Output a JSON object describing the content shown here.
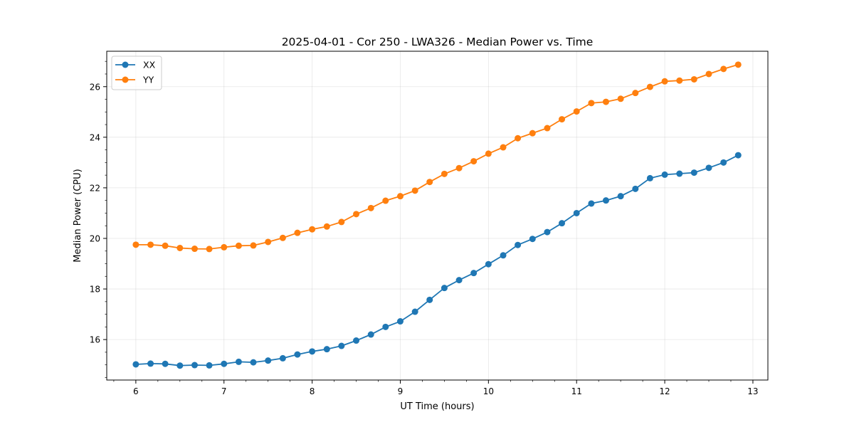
{
  "chart_data": {
    "type": "line",
    "title": "2025-04-01 - Cor 250 - LWA326 - Median Power vs. Time",
    "xlabel": "UT Time (hours)",
    "ylabel": "Median Power (CPU)",
    "xlim": [
      5.67,
      13.17
    ],
    "ylim": [
      14.4,
      27.4
    ],
    "xticks": [
      6,
      7,
      8,
      9,
      10,
      11,
      12,
      13
    ],
    "yticks": [
      16,
      18,
      20,
      22,
      24,
      26
    ],
    "grid": true,
    "legend_position": "top-left",
    "x": [
      6.0,
      6.167,
      6.333,
      6.5,
      6.667,
      6.833,
      7.0,
      7.167,
      7.333,
      7.5,
      7.667,
      7.833,
      8.0,
      8.167,
      8.333,
      8.5,
      8.667,
      8.833,
      9.0,
      9.167,
      9.333,
      9.5,
      9.667,
      9.833,
      10.0,
      10.167,
      10.333,
      10.5,
      10.667,
      10.833,
      11.0,
      11.167,
      11.333,
      11.5,
      11.667,
      11.833,
      12.0,
      12.167,
      12.333,
      12.5,
      12.667,
      12.833
    ],
    "series": [
      {
        "name": "XX",
        "color": "#1f77b4",
        "values": [
          15.02,
          15.05,
          15.04,
          14.97,
          14.99,
          14.98,
          15.04,
          15.12,
          15.1,
          15.17,
          15.26,
          15.41,
          15.53,
          15.62,
          15.75,
          15.96,
          16.2,
          16.5,
          16.72,
          17.1,
          17.57,
          18.04,
          18.35,
          18.63,
          18.98,
          19.33,
          19.74,
          19.98,
          20.25,
          20.6,
          21.0,
          21.38,
          21.5,
          21.67,
          21.96,
          22.38,
          22.52,
          22.56,
          22.6,
          22.79,
          23.0,
          23.29
        ]
      },
      {
        "name": "YY",
        "color": "#ff7f0e",
        "values": [
          19.75,
          19.75,
          19.71,
          19.62,
          19.59,
          19.58,
          19.65,
          19.71,
          19.72,
          19.86,
          20.02,
          20.22,
          20.36,
          20.47,
          20.65,
          20.96,
          21.2,
          21.49,
          21.67,
          21.89,
          22.23,
          22.55,
          22.78,
          23.05,
          23.35,
          23.6,
          23.96,
          24.16,
          24.36,
          24.71,
          25.02,
          25.35,
          25.4,
          25.52,
          25.75,
          25.99,
          26.21,
          26.24,
          26.29,
          26.5,
          26.7,
          26.87
        ]
      }
    ]
  }
}
